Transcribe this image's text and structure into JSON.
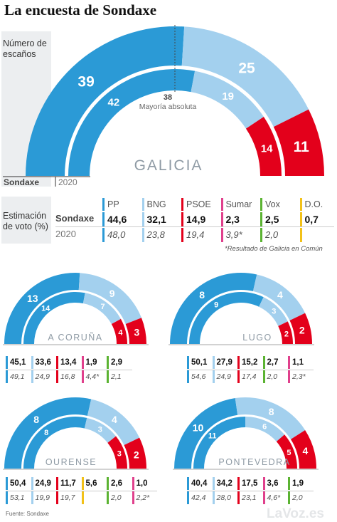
{
  "title": "La encuesta de Sondaxe",
  "labels": {
    "seats": "Número de escaños",
    "vote": "Estimación de voto (%)",
    "sondaxe": "Sondaxe",
    "prev": "2020",
    "majority_value": "38",
    "majority_text": "Mayoría absoluta",
    "note": "*Resultado de Galicia en Común",
    "source": "Fuente: Sondaxe",
    "brand": "LaVoz.es"
  },
  "colors": {
    "PP": "#2b9ad6",
    "BNG": "#a3d0ee",
    "PSOE": "#e3001b",
    "Sumar": "#e0408c",
    "Vox": "#5bb332",
    "DO": "#f2c118"
  },
  "chart_data": [
    {
      "type": "semicircle",
      "region": "GALICIA",
      "parties": [
        "PP",
        "BNG",
        "PSOE"
      ],
      "seats_sondaxe": [
        39,
        25,
        11
      ],
      "seats_2020": [
        42,
        19,
        14
      ],
      "majority": 38,
      "total": 75
    },
    {
      "type": "semicircle",
      "region": "A CORUÑA",
      "parties": [
        "PP",
        "BNG",
        "PSOE"
      ],
      "seats_sondaxe": [
        13,
        9,
        3
      ],
      "seats_2020": [
        14,
        7,
        4
      ]
    },
    {
      "type": "semicircle",
      "region": "LUGO",
      "parties": [
        "PP",
        "BNG",
        "PSOE"
      ],
      "seats_sondaxe": [
        8,
        4,
        2
      ],
      "seats_2020": [
        9,
        3,
        2
      ]
    },
    {
      "type": "semicircle",
      "region": "OURENSE",
      "parties": [
        "PP",
        "BNG",
        "PSOE"
      ],
      "seats_sondaxe": [
        8,
        4,
        2
      ],
      "seats_2020": [
        8,
        3,
        3
      ]
    },
    {
      "type": "semicircle",
      "region": "PONTEVEDRA",
      "parties": [
        "PP",
        "BNG",
        "PSOE"
      ],
      "seats_sondaxe": [
        10,
        8,
        4
      ],
      "seats_2020": [
        11,
        6,
        5
      ]
    },
    {
      "type": "table",
      "region": "GALICIA",
      "parties": [
        "PP",
        "BNG",
        "PSOE",
        "Sumar",
        "Vox",
        "D.O."
      ],
      "colors": [
        "#2b9ad6",
        "#a3d0ee",
        "#e3001b",
        "#e0408c",
        "#5bb332",
        "#f2c118"
      ],
      "sondaxe": [
        "44,6",
        "32,1",
        "14,9",
        "2,3",
        "2,5",
        "0,7"
      ],
      "prev": [
        "48,0",
        "23,8",
        "19,4",
        "3,9*",
        "2,0",
        ""
      ]
    },
    {
      "type": "table",
      "region": "A CORUÑA",
      "colors": [
        "#2b9ad6",
        "#a3d0ee",
        "#e3001b",
        "#e0408c",
        "#5bb332"
      ],
      "sondaxe": [
        "45,1",
        "33,6",
        "13,4",
        "1,9",
        "2,9"
      ],
      "prev": [
        "49,1",
        "24,9",
        "16,8",
        "4,4*",
        "2,1"
      ]
    },
    {
      "type": "table",
      "region": "LUGO",
      "colors": [
        "#2b9ad6",
        "#a3d0ee",
        "#e3001b",
        "#5bb332",
        "#e0408c"
      ],
      "sondaxe": [
        "50,1",
        "27,9",
        "15,2",
        "2,7",
        "1,1"
      ],
      "prev": [
        "54,6",
        "24,9",
        "17,4",
        "2,0",
        "2,3*"
      ]
    },
    {
      "type": "table",
      "region": "OURENSE",
      "colors": [
        "#2b9ad6",
        "#a3d0ee",
        "#e3001b",
        "#f2c118",
        "#5bb332",
        "#e0408c"
      ],
      "sondaxe": [
        "50,4",
        "24,9",
        "11,7",
        "5,6",
        "2,6",
        "1,0"
      ],
      "prev": [
        "53,1",
        "19,9",
        "19,7",
        "",
        "2,0",
        "2,2*"
      ]
    },
    {
      "type": "table",
      "region": "PONTEVEDRA",
      "colors": [
        "#2b9ad6",
        "#a3d0ee",
        "#e3001b",
        "#e0408c",
        "#5bb332"
      ],
      "sondaxe": [
        "40,4",
        "34,2",
        "17,5",
        "3,6",
        "1,9"
      ],
      "prev": [
        "42,4",
        "28,0",
        "23,1",
        "4,6*",
        "2,0"
      ]
    }
  ]
}
